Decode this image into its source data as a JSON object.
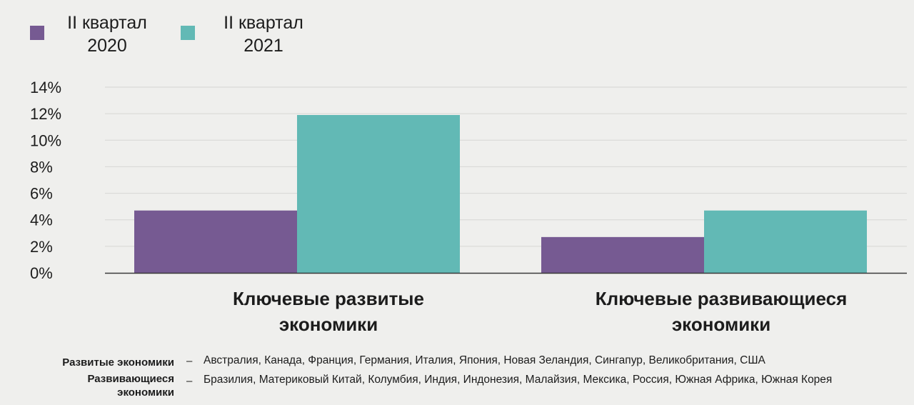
{
  "chart_data": {
    "type": "bar",
    "categories": [
      "Ключевые развитые\nэкономики",
      "Ключевые развивающиеся\nэкономики"
    ],
    "series": [
      {
        "name": "II квартал\n2020",
        "color": "#765a92",
        "values": [
          4.7,
          2.7
        ]
      },
      {
        "name": "II квартал\n2021",
        "color": "#62b9b5",
        "values": [
          11.9,
          4.7
        ]
      }
    ],
    "yticks": [
      "0%",
      "2%",
      "4%",
      "6%",
      "8%",
      "10%",
      "12%",
      "14%"
    ],
    "ylim": [
      0,
      14
    ],
    "grid": true,
    "legend_position": "top-left"
  },
  "notes": [
    {
      "label": "Развитые экономики",
      "dash": "–",
      "text": "Австралия, Канада, Франция, Германия, Италия, Япония, Новая Зеландия, Сингапур, Великобритания, США"
    },
    {
      "label": "Развивающиеся\nэкономики",
      "dash": "–",
      "text": "Бразилия, Материковый Китай, Колумбия, Индия, Индонезия, Малайзия, Мексика, Россия, Южная Африка, Южная Корея"
    }
  ]
}
